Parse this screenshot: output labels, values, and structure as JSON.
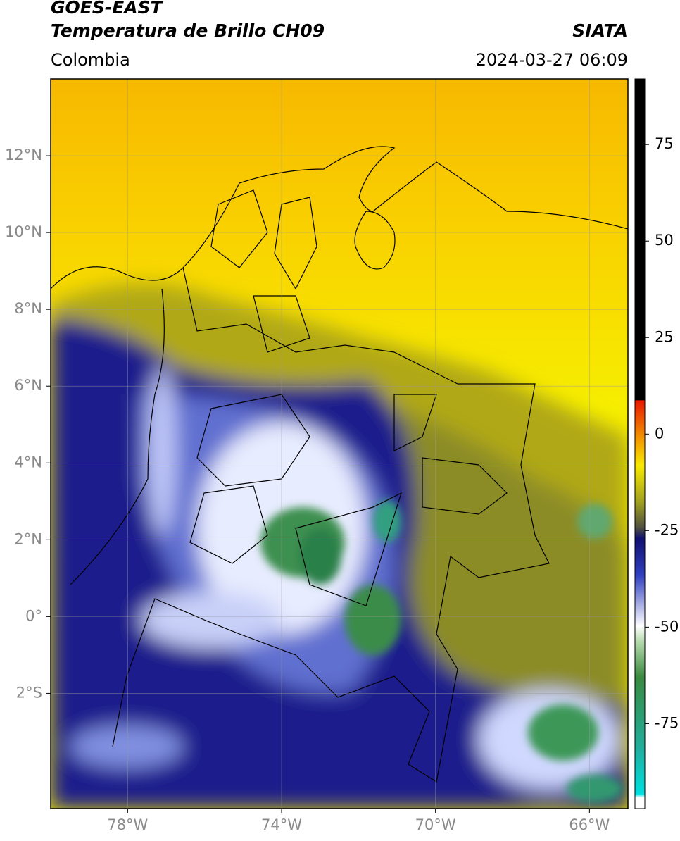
{
  "header": {
    "satellite": "GOES-EAST",
    "product": "Temperatura de Brillo CH09",
    "brand": "SIATA",
    "region": "Colombia",
    "datetime": "2024-03-27 06:09"
  },
  "map": {
    "xlim": [
      -80,
      -65
    ],
    "ylim": [
      -5,
      14
    ],
    "xticks": [
      {
        "value": -78,
        "label": "78°W"
      },
      {
        "value": -74,
        "label": "74°W"
      },
      {
        "value": -70,
        "label": "70°W"
      },
      {
        "value": -66,
        "label": "66°W"
      }
    ],
    "yticks": [
      {
        "value": 12,
        "label": "12°N"
      },
      {
        "value": 10,
        "label": "10°N"
      },
      {
        "value": 8,
        "label": "8°N"
      },
      {
        "value": 6,
        "label": "6°N"
      },
      {
        "value": 4,
        "label": "4°N"
      },
      {
        "value": 2,
        "label": "2°N"
      },
      {
        "value": 0,
        "label": "0°"
      },
      {
        "value": -2,
        "label": "2°S"
      }
    ],
    "grid": true
  },
  "colorbar": {
    "lim": [
      -97,
      92
    ],
    "ticks": [
      75,
      50,
      25,
      0,
      -25,
      -50,
      -75
    ]
  }
}
